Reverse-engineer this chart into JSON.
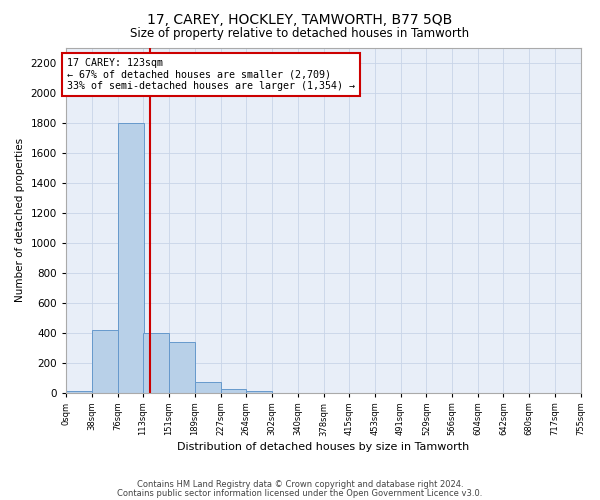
{
  "title": "17, CAREY, HOCKLEY, TAMWORTH, B77 5QB",
  "subtitle": "Size of property relative to detached houses in Tamworth",
  "xlabel": "Distribution of detached houses by size in Tamworth",
  "ylabel": "Number of detached properties",
  "bar_color": "#b8d0e8",
  "bar_edge_color": "#6699cc",
  "grid_color": "#c8d4e8",
  "background_color": "#e8eef8",
  "annotation_box_color": "#cc0000",
  "annotation_line_color": "#cc0000",
  "property_line_x": 123,
  "bin_edges": [
    0,
    38,
    76,
    113,
    151,
    189,
    227,
    264,
    302,
    340,
    378,
    415,
    453,
    491,
    529,
    566,
    604,
    642,
    680,
    717,
    755
  ],
  "bar_heights": [
    10,
    420,
    1800,
    400,
    340,
    70,
    25,
    10,
    0,
    0,
    0,
    0,
    0,
    0,
    0,
    0,
    0,
    0,
    0,
    0
  ],
  "ylim": [
    0,
    2300
  ],
  "yticks": [
    0,
    200,
    400,
    600,
    800,
    1000,
    1200,
    1400,
    1600,
    1800,
    2000,
    2200
  ],
  "annotation_text": "17 CAREY: 123sqm\n← 67% of detached houses are smaller (2,709)\n33% of semi-detached houses are larger (1,354) →",
  "footer_line1": "Contains HM Land Registry data © Crown copyright and database right 2024.",
  "footer_line2": "Contains public sector information licensed under the Open Government Licence v3.0.",
  "tick_labels": [
    "0sqm",
    "38sqm",
    "76sqm",
    "113sqm",
    "151sqm",
    "189sqm",
    "227sqm",
    "264sqm",
    "302sqm",
    "340sqm",
    "378sqm",
    "415sqm",
    "453sqm",
    "491sqm",
    "529sqm",
    "566sqm",
    "604sqm",
    "642sqm",
    "680sqm",
    "717sqm",
    "755sqm"
  ]
}
